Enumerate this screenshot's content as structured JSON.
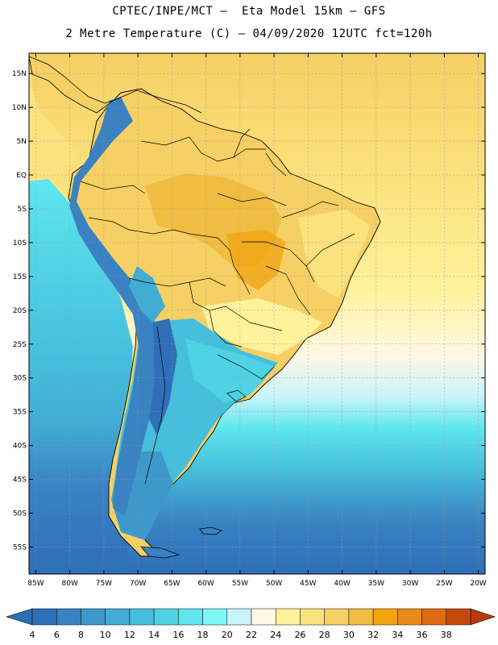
{
  "header": {
    "line1": "CPTEC/INPE/MCT –  Eta Model 15km – GFS",
    "line2": "2 Metre Temperature (C) – 04/09/2020 12UTC fct=120h"
  },
  "map": {
    "lon_range": [
      -86,
      -19
    ],
    "lat_range": [
      -59,
      18
    ],
    "lat_ticks": [
      {
        "v": 15,
        "label": "15N"
      },
      {
        "v": 10,
        "label": "10N"
      },
      {
        "v": 5,
        "label": "5N"
      },
      {
        "v": 0,
        "label": "EQ"
      },
      {
        "v": -5,
        "label": "5S"
      },
      {
        "v": -10,
        "label": "10S"
      },
      {
        "v": -15,
        "label": "15S"
      },
      {
        "v": -20,
        "label": "20S"
      },
      {
        "v": -25,
        "label": "25S"
      },
      {
        "v": -30,
        "label": "30S"
      },
      {
        "v": -35,
        "label": "35S"
      },
      {
        "v": -40,
        "label": "40S"
      },
      {
        "v": -45,
        "label": "45S"
      },
      {
        "v": -50,
        "label": "50S"
      },
      {
        "v": -55,
        "label": "55S"
      }
    ],
    "lon_ticks": [
      {
        "v": -85,
        "label": "85W"
      },
      {
        "v": -80,
        "label": "80W"
      },
      {
        "v": -75,
        "label": "75W"
      },
      {
        "v": -70,
        "label": "70W"
      },
      {
        "v": -65,
        "label": "65W"
      },
      {
        "v": -60,
        "label": "60W"
      },
      {
        "v": -55,
        "label": "55W"
      },
      {
        "v": -50,
        "label": "50W"
      },
      {
        "v": -45,
        "label": "45W"
      },
      {
        "v": -40,
        "label": "40W"
      },
      {
        "v": -35,
        "label": "35W"
      },
      {
        "v": -30,
        "label": "30W"
      },
      {
        "v": -25,
        "label": "25W"
      },
      {
        "v": -20,
        "label": "20W"
      }
    ]
  },
  "colorbar": {
    "labels": [
      "4",
      "6",
      "8",
      "10",
      "12",
      "14",
      "16",
      "18",
      "20",
      "22",
      "24",
      "26",
      "28",
      "30",
      "32",
      "34",
      "36",
      "38"
    ],
    "low_color": "#2a6fb5",
    "high_color": "#b83a0c",
    "colors": [
      "#2f6fb8",
      "#3a82c2",
      "#3f98ca",
      "#41acd4",
      "#45bfdc",
      "#4fd2e4",
      "#5fe6ee",
      "#7ff6f8",
      "#c8f3fb",
      "#fff8e4",
      "#fff29a",
      "#fbe27e",
      "#f6d064",
      "#f0bd42",
      "#f2a40e",
      "#ea8a18",
      "#e06a10",
      "#c24a0a"
    ]
  }
}
